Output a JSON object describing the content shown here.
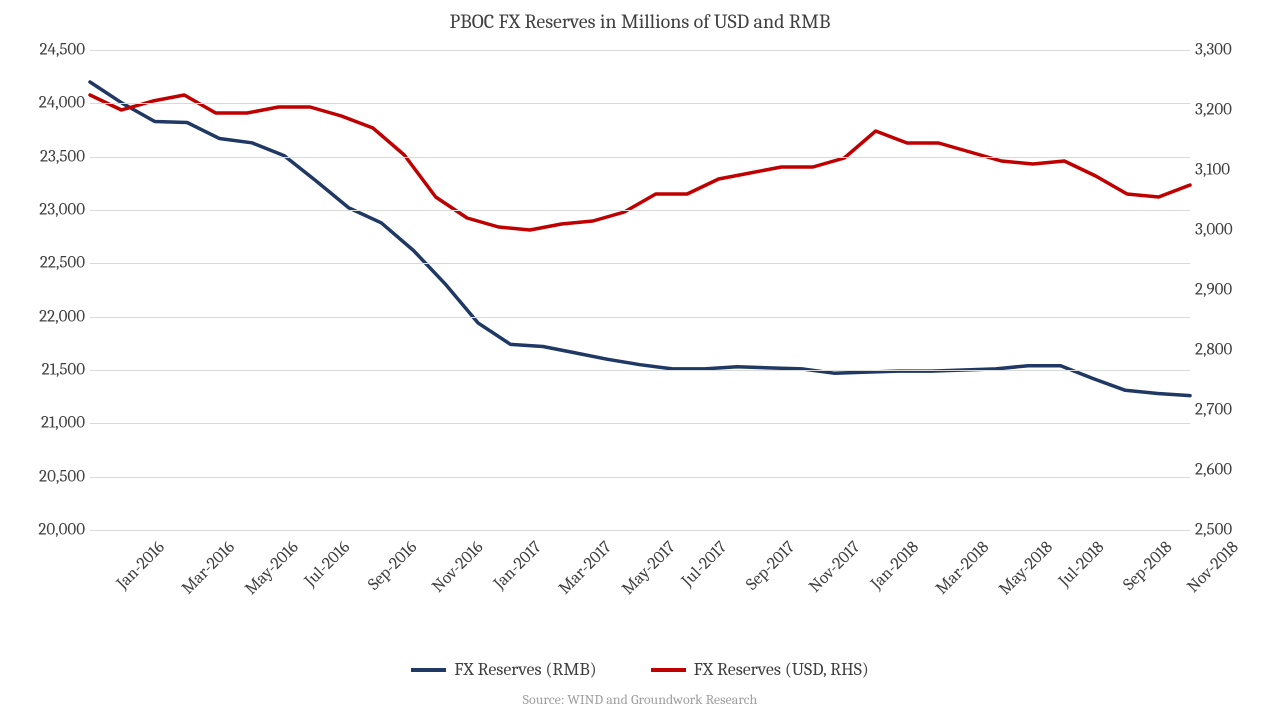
{
  "chart": {
    "type": "line-dual-axis",
    "title": "PBOC FX Reserves in Millions of USD and RMB",
    "source": "Source: WIND and Groundwork Research",
    "background_color": "#ffffff",
    "grid_color": "#d9d9d9",
    "text_color": "#404040",
    "title_fontsize": 20,
    "tick_fontsize": 17,
    "legend_fontsize": 18,
    "source_fontsize": 14,
    "x_labels": [
      "Jan-2016",
      "Mar-2016",
      "May-2016",
      "Jul-2016",
      "Sep-2016",
      "Nov-2016",
      "Jan-2017",
      "Mar-2017",
      "May-2017",
      "Jul-2017",
      "Sep-2017",
      "Nov-2017",
      "Jan-2018",
      "Mar-2018",
      "May-2018",
      "Jul-2018",
      "Sep-2018",
      "Nov-2018"
    ],
    "y_left": {
      "min": 20000,
      "max": 24500,
      "step": 500,
      "ticks": [
        20000,
        20500,
        21000,
        21500,
        22000,
        22500,
        23000,
        23500,
        24000,
        24500
      ],
      "tick_labels": [
        "20,000",
        "20,500",
        "21,000",
        "21,500",
        "22,000",
        "22,500",
        "23,000",
        "23,500",
        "24,000",
        "24,500"
      ]
    },
    "y_right": {
      "min": 2500,
      "max": 3300,
      "step": 100,
      "ticks": [
        2500,
        2600,
        2700,
        2800,
        2900,
        3000,
        3100,
        3200,
        3300
      ],
      "tick_labels": [
        "2,500",
        "2,600",
        "2,700",
        "2,800",
        "2,900",
        "3,000",
        "3,100",
        "3,200",
        "3,300"
      ]
    },
    "series": [
      {
        "name": "FX Reserves (RMB)",
        "axis": "left",
        "color": "#1f3864",
        "line_width": 3.5,
        "data": [
          24200,
          24000,
          23830,
          23820,
          23670,
          23630,
          23510,
          23270,
          23020,
          22880,
          22620,
          22300,
          21940,
          21740,
          21720,
          21660,
          21600,
          21550,
          21510,
          21510,
          21530,
          21520,
          21510,
          21470,
          21480,
          21490,
          21490,
          21500,
          21510,
          21540,
          21540,
          21420,
          21310,
          21280,
          21260
        ]
      },
      {
        "name": "FX Reserves (USD, RHS)",
        "axis": "right",
        "color": "#c00000",
        "line_width": 3.5,
        "data": [
          3225,
          3200,
          3215,
          3225,
          3195,
          3195,
          3205,
          3205,
          3190,
          3170,
          3125,
          3055,
          3020,
          3005,
          3000,
          3010,
          3015,
          3030,
          3060,
          3060,
          3085,
          3095,
          3105,
          3105,
          3120,
          3165,
          3145,
          3145,
          3130,
          3115,
          3110,
          3115,
          3090,
          3060,
          3055,
          3075
        ]
      }
    ],
    "legend": [
      {
        "label": "FX Reserves (RMB)",
        "color": "#1f3864"
      },
      {
        "label": "FX Reserves (USD, RHS)",
        "color": "#c00000"
      }
    ]
  }
}
